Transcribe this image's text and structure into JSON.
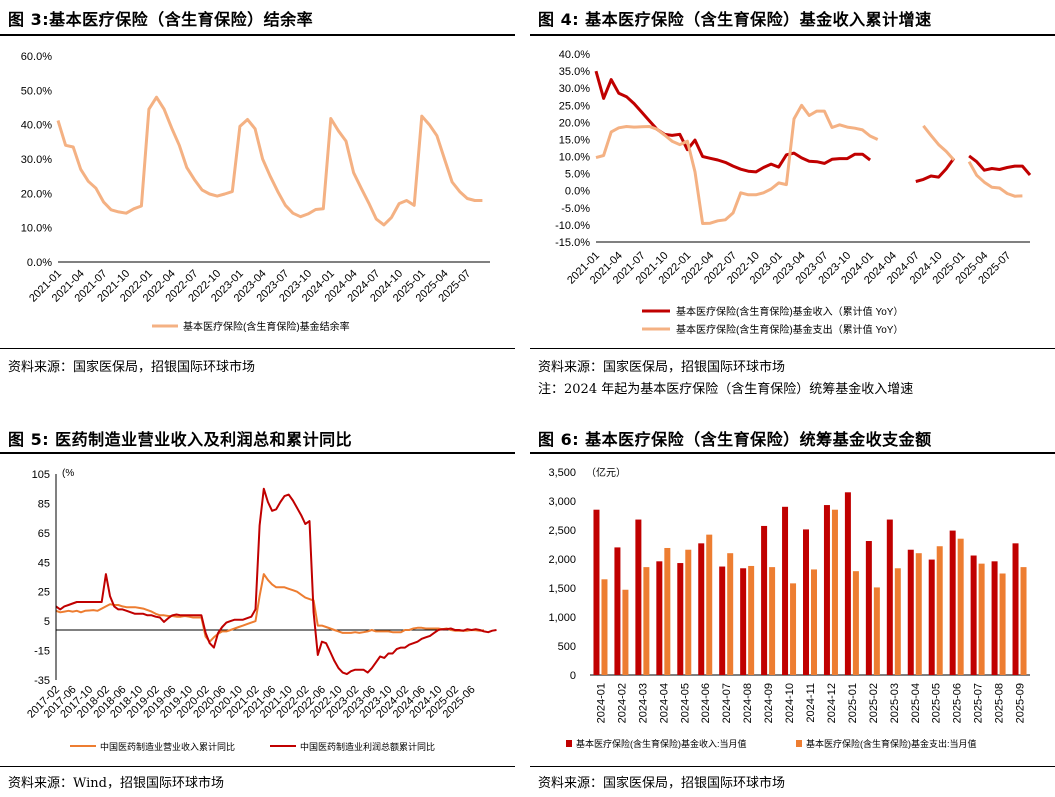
{
  "panels": {
    "p3": {
      "fig_prefix": "图 ",
      "fig_num": "3:",
      "title": "基本医疗保险（含生育保险）结余率",
      "source": "资料来源：国家医保局，招银国际环球市场"
    },
    "p4": {
      "fig_prefix": "图 ",
      "fig_num": "4:",
      "title": " 基本医疗保险（含生育保险）基金收入累计增速",
      "source": "资料来源：国家医保局，招银国际环球市场",
      "note": "注：2024 年起为基本医疗保险（含生育保险）统筹基金收入增速"
    },
    "p5": {
      "fig_prefix": "图 ",
      "fig_num": "5:",
      "title": " 医药制造业营业收入及利润总和累计同比",
      "source": "资料来源：Wind，招银国际环球市场"
    },
    "p6": {
      "fig_prefix": "图 ",
      "fig_num": "6:",
      "title": " 基本医疗保险（含生育保险）统筹基金收支金额",
      "source": "资料来源：国家医保局，招银国际环球市场"
    }
  },
  "colors": {
    "dark_red": "#C00000",
    "light_orange": "#F4B183",
    "orange": "#ED7D31",
    "bar_red": "#C00000",
    "bar_orange": "#ED7D31"
  },
  "chart_data": [
    {
      "id": "chart3",
      "type": "line",
      "x_start": "2021-01",
      "x_ticks": [
        "2021-01",
        "2021-04",
        "2021-07",
        "2021-10",
        "2022-01",
        "2022-04",
        "2022-07",
        "2022-10",
        "2023-01",
        "2023-04",
        "2023-07",
        "2023-10",
        "2024-01",
        "2024-04",
        "2024-07",
        "2024-10",
        "2025-01",
        "2025-04",
        "2025-07"
      ],
      "ylim": [
        0,
        60
      ],
      "y_ticks": [
        "0.0%",
        "10.0%",
        "20.0%",
        "30.0%",
        "40.0%",
        "50.0%",
        "60.0%"
      ],
      "series": [
        {
          "name": "基本医疗保险(含生育保险)基金结余率",
          "color": "#F4B183",
          "values": [
            41.2,
            34.0,
            33.5,
            27.0,
            23.5,
            21.5,
            17.5,
            15.2,
            14.6,
            14.2,
            15.5,
            16.3,
            44.5,
            48.0,
            44.5,
            39.0,
            34.0,
            27.5,
            24.0,
            21.0,
            19.8,
            19.2,
            19.8,
            20.5,
            39.5,
            41.5,
            38.8,
            30.0,
            25.0,
            20.5,
            16.5,
            14.2,
            13.2,
            14.0,
            15.3,
            15.5,
            41.8,
            38.2,
            35.2,
            26.0,
            21.5,
            17.2,
            12.5,
            10.8,
            13.0,
            17.0,
            17.9,
            16.5,
            42.5,
            40.0,
            36.8,
            30.0,
            23.3,
            20.5,
            18.5,
            17.9,
            17.9
          ]
        }
      ]
    },
    {
      "id": "chart4",
      "type": "line",
      "x_start": "2021-01",
      "x_ticks": [
        "2021-01",
        "2021-04",
        "2021-07",
        "2021-10",
        "2022-01",
        "2022-04",
        "2022-07",
        "2022-10",
        "2023-01",
        "2023-04",
        "2023-07",
        "2023-10",
        "2024-01",
        "2024-04",
        "2024-07",
        "2024-10",
        "2025-01",
        "2025-04",
        "2025-07"
      ],
      "ylim": [
        -15,
        40
      ],
      "y_ticks": [
        "-15.0%",
        "-10.0%",
        "-5.0%",
        "0.0%",
        "5.0%",
        "10.0%",
        "15.0%",
        "20.0%",
        "25.0%",
        "30.0%",
        "35.0%",
        "40.0%"
      ],
      "series": [
        {
          "name": "基本医疗保险(含生育保险)基金收入（累计值 YoY）",
          "color": "#C00000",
          "values": [
            35.0,
            27.0,
            32.5,
            28.5,
            27.5,
            25.5,
            23.0,
            20.5,
            18.0,
            16.5,
            16.2,
            16.5,
            12.0,
            14.8,
            10.0,
            9.5,
            9.0,
            8.3,
            7.2,
            6.3,
            5.7,
            5.5,
            6.8,
            7.8,
            6.9,
            10.5,
            11.0,
            9.6,
            8.6,
            8.5,
            8.0,
            9.2,
            9.4,
            9.4,
            10.7,
            10.7,
            9.0,
            null,
            null,
            null,
            null,
            null,
            2.7,
            3.3,
            4.3,
            4.0,
            6.4,
            9.5,
            null,
            10.2,
            8.5,
            6.0,
            6.5,
            6.2,
            6.8,
            7.2,
            7.2,
            4.6
          ],
          "note_gap": "null = no value"
        },
        {
          "name": "基本医疗保险(含生育保险)基金支出（累计值 YoY）",
          "color": "#F4B183",
          "values": [
            9.7,
            10.3,
            17.2,
            18.4,
            18.8,
            18.6,
            18.7,
            18.8,
            18.0,
            16.3,
            14.5,
            13.5,
            14.5,
            5.5,
            -9.6,
            -9.5,
            -8.8,
            -8.5,
            -6.5,
            -0.6,
            -1.2,
            -1.2,
            -0.6,
            0.5,
            2.3,
            1.8,
            21.0,
            25.0,
            22.0,
            23.3,
            23.3,
            18.5,
            19.3,
            18.6,
            18.3,
            17.8,
            16.0,
            15.0,
            null,
            null,
            null,
            null,
            null,
            19.0,
            16.2,
            13.5,
            11.5,
            9.0,
            null,
            8.5,
            4.5,
            2.5,
            1.0,
            0.8,
            -0.8,
            -1.6,
            -1.5
          ],
          "note_gap": "null = no value"
        }
      ]
    },
    {
      "id": "chart5",
      "type": "line",
      "x_start": "2017-02",
      "x_ticks": [
        "2017-02",
        "2017-06",
        "2017-10",
        "2018-02",
        "2018-06",
        "2018-10",
        "2019-02",
        "2019-06",
        "2019-10",
        "2020-02",
        "2020-06",
        "2020-10",
        "2021-02",
        "2021-06",
        "2021-10",
        "2022-02",
        "2022-06",
        "2022-10",
        "2023-02",
        "2023-06",
        "2023-10",
        "2024-02",
        "2024-06",
        "2024-10",
        "2025-02",
        "2025-06"
      ],
      "ylim": [
        -35,
        105
      ],
      "y_ticks": [
        "-35",
        "-15",
        "5",
        "25",
        "45",
        "65",
        "85",
        "105"
      ],
      "y_unit": "(%",
      "series": [
        {
          "name": "中国医药制造业营业收入累计同比",
          "color": "#ED7D31",
          "values": [
            12,
            11,
            11.5,
            12,
            11.5,
            12,
            11,
            12,
            12.2,
            12.5,
            12,
            13.5,
            15,
            16.5,
            16,
            16,
            15,
            14.5,
            14.5,
            14.5,
            14,
            13.5,
            12.5,
            11.5,
            10,
            9,
            9,
            8.5,
            8.5,
            8,
            8,
            8.5,
            8,
            7.5,
            7.5,
            7.5,
            -5.5,
            -9,
            -6,
            -3.5,
            -2,
            -2,
            -1,
            0,
            1,
            2,
            3,
            4,
            5,
            22,
            37,
            33,
            30,
            28,
            28,
            28,
            27,
            26,
            25,
            23,
            21,
            20,
            19,
            2,
            2,
            1,
            0,
            -1,
            -2,
            -3,
            -3,
            -3,
            -2.5,
            -3,
            -2.5,
            -2,
            -1,
            -2,
            -2,
            -2,
            -2,
            -2.5,
            -2.5,
            -2.5,
            -1,
            -1,
            0,
            0.5,
            0.5,
            0,
            0,
            0,
            0,
            -0.5,
            0,
            -1,
            -1.5,
            -1.5,
            -1.5,
            -1.5,
            -1,
            -1.2,
            -1.5,
            -1.2
          ]
        },
        {
          "name": "中国医药制造业利润总额累计同比",
          "color": "#C00000",
          "values": [
            15,
            13,
            15,
            16,
            17,
            18,
            18,
            18,
            18,
            18,
            18,
            18,
            37,
            22,
            15,
            13,
            13,
            12,
            11,
            10,
            10,
            10,
            9,
            9,
            8,
            7.5,
            4.5,
            7,
            9,
            9.5,
            9,
            9,
            9,
            9,
            9,
            9,
            -3,
            -10,
            -13,
            -3,
            1,
            4,
            5,
            6,
            6,
            6,
            7,
            8,
            13,
            70,
            95,
            86,
            80,
            81,
            86,
            90,
            91,
            87,
            82,
            77,
            71,
            73,
            11,
            -18,
            -9,
            -10,
            -16,
            -22,
            -27,
            -30,
            -31,
            -29,
            -28,
            -28,
            -28,
            -30,
            -27,
            -23,
            -19,
            -20,
            -17,
            -17,
            -14,
            -13,
            -13,
            -11,
            -10,
            -9,
            -7,
            -6,
            -5,
            -3,
            -1,
            -0.5,
            -0.5,
            0,
            -1,
            -1,
            -1.5,
            -0.5,
            -1,
            -0.5,
            -1,
            -2,
            -2.5,
            -1.5,
            -1
          ]
        }
      ]
    },
    {
      "id": "chart6",
      "type": "bar",
      "categories": [
        "2024-01",
        "2024-02",
        "2024-03",
        "2024-04",
        "2024-05",
        "2024-06",
        "2024-07",
        "2024-08",
        "2024-09",
        "2024-10",
        "2024-11",
        "2024-12",
        "2025-01",
        "2025-02",
        "2025-03",
        "2025-04",
        "2025-05",
        "2025-06",
        "2025-07",
        "2025-08",
        "2025-09"
      ],
      "ylim": [
        0,
        3500
      ],
      "y_ticks": [
        "0",
        "500",
        "1,000",
        "1,500",
        "2,000",
        "2,500",
        "3,000",
        "3,500"
      ],
      "y_unit": "（亿元）",
      "series": [
        {
          "name": "基本医疗保险(含生育保险)基金收入:当月值",
          "color": "#C00000",
          "values": [
            2850,
            2200,
            2680,
            1960,
            1930,
            2270,
            1870,
            1840,
            2570,
            2900,
            2510,
            2930,
            3150,
            2310,
            2680,
            2160,
            1990,
            2490,
            2060,
            1960,
            2270
          ]
        },
        {
          "name": "基本医疗保险(含生育保险)基金支出:当月值",
          "color": "#ED7D31",
          "values": [
            1650,
            1470,
            1860,
            2190,
            2160,
            2420,
            2100,
            1880,
            1860,
            1580,
            1820,
            2850,
            1790,
            1510,
            1840,
            2100,
            2220,
            2350,
            1920,
            1750,
            1860
          ]
        }
      ]
    }
  ]
}
